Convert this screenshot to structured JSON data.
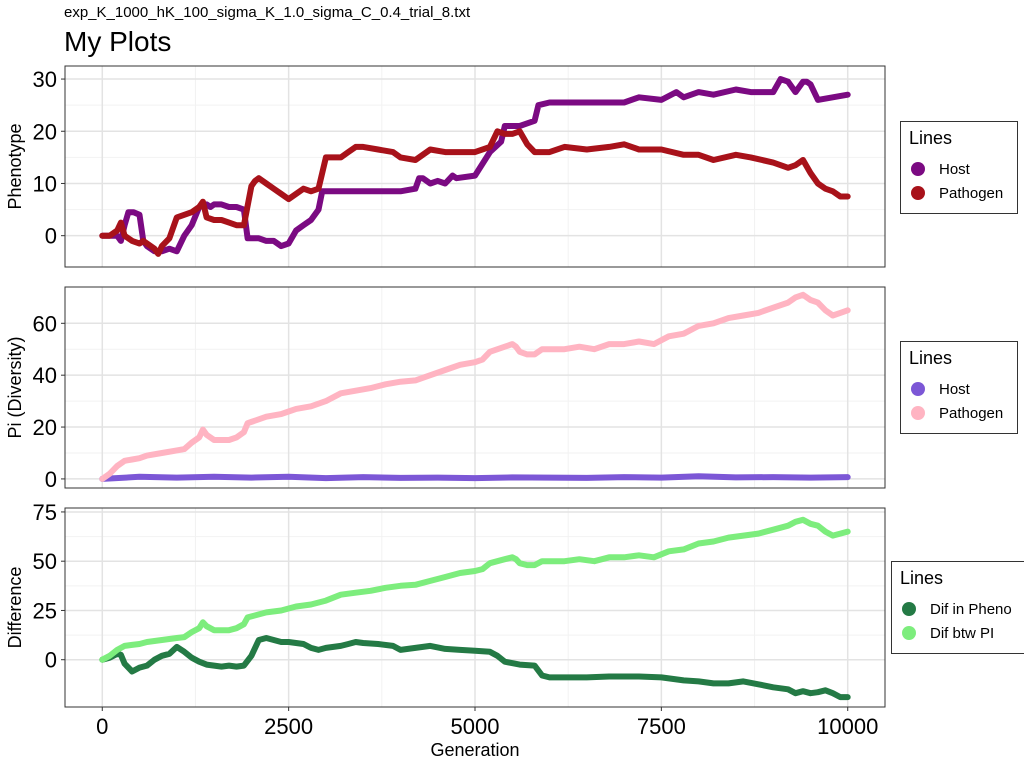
{
  "subtitle": "exp_K_1000_hK_100_sigma_K_1.0_sigma_C_0.4_trial_8.txt",
  "title": "My Plots",
  "legends": [
    {
      "title": "Lines",
      "items": [
        {
          "label": "Host",
          "color": "#7b0a82"
        },
        {
          "label": "Pathogen",
          "color": "#a8121a"
        }
      ]
    },
    {
      "title": "Lines",
      "items": [
        {
          "label": "Host",
          "color": "#7c57d6"
        },
        {
          "label": "Pathogen",
          "color": "#ffb4c2"
        }
      ]
    },
    {
      "title": "Lines",
      "items": [
        {
          "label": "Dif in Pheno",
          "color": "#247a45"
        },
        {
          "label": "Dif btw PI",
          "color": "#7ded7d"
        }
      ]
    }
  ],
  "chart_data": [
    {
      "type": "line",
      "ylabel": "Phenotype",
      "xlim": [
        -500,
        10500
      ],
      "ylim": [
        -6,
        32.5
      ],
      "yticks": [
        0,
        10,
        20,
        30
      ],
      "xticks": [
        0,
        2500,
        5000,
        7500,
        10000
      ],
      "grid": true,
      "legend": "right",
      "series": [
        {
          "name": "Host",
          "color": "#7b0a82",
          "x": [
            0,
            200,
            250,
            300,
            350,
            420,
            500,
            550,
            600,
            700,
            800,
            900,
            1000,
            1100,
            1200,
            1300,
            1400,
            1450,
            1500,
            1600,
            1700,
            1800,
            1900,
            1950,
            2000,
            2100,
            2200,
            2300,
            2400,
            2500,
            2600,
            2700,
            2800,
            2900,
            2950,
            3000,
            3500,
            4000,
            4200,
            4250,
            4300,
            4400,
            4500,
            4600,
            4700,
            4750,
            5000,
            5200,
            5350,
            5400,
            5500,
            5600,
            5800,
            5850,
            6000,
            6500,
            7000,
            7200,
            7500,
            7700,
            7800,
            8000,
            8200,
            8500,
            8700,
            9000,
            9100,
            9200,
            9300,
            9400,
            9450,
            9500,
            9600,
            9800,
            10000
          ],
          "y": [
            0,
            0,
            -1,
            2,
            4.5,
            4.5,
            4,
            -1,
            -2,
            -3,
            -3,
            -2.5,
            -3,
            0,
            2,
            5.5,
            6,
            5.5,
            6,
            6,
            5.5,
            5.5,
            5,
            -0.5,
            -0.5,
            -0.5,
            -1,
            -1,
            -2,
            -1.5,
            1,
            2,
            3,
            5,
            8.5,
            8.5,
            8.5,
            8.5,
            9,
            11,
            11,
            10,
            10.5,
            10,
            11.5,
            11,
            11.5,
            16,
            18,
            21,
            21,
            21,
            22,
            25,
            25.5,
            25.5,
            25.5,
            26.5,
            26,
            27.5,
            26.5,
            27.5,
            27,
            28,
            27.5,
            27.5,
            30,
            29.5,
            27.5,
            29.5,
            29.5,
            29,
            26,
            26.5,
            27
          ]
        },
        {
          "name": "Pathogen",
          "color": "#a8121a",
          "x": [
            0,
            100,
            200,
            250,
            300,
            400,
            500,
            550,
            600,
            700,
            750,
            800,
            900,
            1000,
            1100,
            1200,
            1300,
            1350,
            1400,
            1500,
            1600,
            1700,
            1800,
            1900,
            2000,
            2050,
            2100,
            2200,
            2300,
            2400,
            2500,
            2600,
            2700,
            2800,
            2900,
            3000,
            3100,
            3200,
            3300,
            3400,
            3500,
            3700,
            3900,
            4000,
            4200,
            4400,
            4600,
            4800,
            5000,
            5200,
            5300,
            5400,
            5500,
            5600,
            5700,
            5800,
            6000,
            6200,
            6500,
            6800,
            7000,
            7200,
            7500,
            7800,
            8000,
            8200,
            8500,
            8700,
            9000,
            9200,
            9300,
            9400,
            9500,
            9600,
            9700,
            9800,
            9900,
            10000
          ],
          "y": [
            0,
            0,
            1,
            2.5,
            0,
            -1,
            -1.5,
            -1,
            -1.5,
            -2.5,
            -3.5,
            -2,
            -0.5,
            3.5,
            4,
            4.5,
            5.5,
            6.5,
            3.5,
            3,
            3,
            2.5,
            2,
            2,
            9.5,
            10.5,
            11,
            10,
            9,
            8,
            7,
            8,
            9,
            8.5,
            9,
            15,
            15,
            15,
            16,
            17,
            17,
            16.5,
            16,
            15,
            14.5,
            16.5,
            16,
            16,
            16,
            17,
            20,
            19.5,
            19.5,
            20,
            17.5,
            16,
            16,
            17,
            16.5,
            17,
            17.5,
            16.5,
            16.5,
            15.5,
            15.5,
            14.5,
            15.5,
            15,
            14,
            13,
            13.5,
            14.5,
            12,
            10,
            9,
            8.5,
            7.5,
            7.5
          ]
        }
      ]
    },
    {
      "type": "line",
      "ylabel": "Pi (Diversity)",
      "xlim": [
        -500,
        10500
      ],
      "ylim": [
        -3.5,
        74
      ],
      "yticks": [
        0,
        20,
        40,
        60
      ],
      "xticks": [
        0,
        2500,
        5000,
        7500,
        10000
      ],
      "grid": true,
      "legend": "right",
      "series": [
        {
          "name": "Host",
          "color": "#7c57d6",
          "x": [
            0,
            500,
            1000,
            1500,
            2000,
            2500,
            3000,
            3500,
            4000,
            4500,
            5000,
            5500,
            6000,
            6500,
            7000,
            7500,
            8000,
            8500,
            9000,
            9500,
            10000
          ],
          "y": [
            0,
            0.8,
            0.5,
            0.8,
            0.5,
            0.8,
            0.3,
            0.7,
            0.4,
            0.5,
            0.3,
            0.6,
            0.5,
            0.4,
            0.7,
            0.5,
            1,
            0.6,
            0.7,
            0.5,
            0.7
          ]
        },
        {
          "name": "Pathogen",
          "color": "#ffb4c2",
          "x": [
            0,
            100,
            200,
            300,
            400,
            500,
            600,
            800,
            1000,
            1100,
            1200,
            1300,
            1350,
            1400,
            1500,
            1700,
            1800,
            1900,
            1950,
            2000,
            2200,
            2400,
            2500,
            2600,
            2800,
            3000,
            3200,
            3400,
            3600,
            3800,
            4000,
            4200,
            4400,
            4600,
            4800,
            5000,
            5100,
            5200,
            5400,
            5500,
            5550,
            5600,
            5700,
            5800,
            5900,
            6000,
            6200,
            6400,
            6600,
            6800,
            7000,
            7200,
            7400,
            7600,
            7800,
            8000,
            8200,
            8400,
            8600,
            8800,
            9000,
            9200,
            9300,
            9400,
            9500,
            9600,
            9700,
            9800,
            9900,
            10000
          ],
          "y": [
            0,
            2,
            5,
            7,
            7.5,
            8,
            9,
            10,
            11,
            11.5,
            14,
            16,
            19,
            17,
            15,
            15,
            16,
            18,
            21.5,
            22,
            24,
            25,
            26,
            27,
            28,
            30,
            33,
            34,
            35,
            36.5,
            37.5,
            38,
            40,
            42,
            44,
            45,
            46,
            49,
            51,
            52,
            51,
            49,
            48,
            48,
            50,
            50,
            50,
            51,
            50,
            52,
            52,
            53,
            52,
            55,
            56,
            59,
            60,
            62,
            63,
            64,
            66,
            68,
            70,
            71,
            69,
            68,
            65,
            63,
            64,
            65
          ]
        }
      ]
    },
    {
      "type": "line",
      "ylabel": "Difference",
      "xlabel": "Generation",
      "xlim": [
        -500,
        10500
      ],
      "ylim": [
        -24,
        77
      ],
      "yticks": [
        0,
        25,
        50,
        75
      ],
      "xticks": [
        0,
        2500,
        5000,
        7500,
        10000
      ],
      "grid": true,
      "legend": "right",
      "series": [
        {
          "name": "Dif in Pheno",
          "color": "#247a45",
          "x": [
            0,
            100,
            200,
            250,
            300,
            350,
            400,
            500,
            600,
            700,
            800,
            900,
            1000,
            1100,
            1200,
            1300,
            1400,
            1500,
            1600,
            1700,
            1800,
            1900,
            2000,
            2100,
            2200,
            2400,
            2500,
            2700,
            2800,
            2900,
            3000,
            3200,
            3300,
            3400,
            3500,
            3700,
            3900,
            4000,
            4200,
            4400,
            4600,
            4800,
            5000,
            5200,
            5300,
            5400,
            5600,
            5800,
            5900,
            6000,
            6200,
            6500,
            6800,
            7000,
            7200,
            7500,
            7700,
            7800,
            8000,
            8200,
            8400,
            8600,
            8800,
            9000,
            9200,
            9300,
            9400,
            9500,
            9600,
            9700,
            9800,
            9900,
            10000
          ],
          "y": [
            0,
            1,
            3,
            2.5,
            -2,
            -4,
            -6,
            -4,
            -3,
            0,
            2,
            3,
            6.5,
            4,
            1,
            -1,
            -2.5,
            -3,
            -3.5,
            -3,
            -3.5,
            -3,
            2,
            10,
            11,
            9,
            9,
            8,
            6,
            5,
            6,
            7,
            8,
            9,
            8.5,
            8,
            7,
            5,
            6,
            7,
            5.5,
            5,
            4.5,
            4,
            2,
            -1,
            -2.5,
            -3,
            -8,
            -9,
            -9,
            -9,
            -8.5,
            -8.5,
            -8.5,
            -9,
            -10,
            -10.5,
            -11,
            -12,
            -12,
            -11,
            -12.5,
            -14,
            -15,
            -17,
            -16,
            -17,
            -16.5,
            -15.5,
            -17,
            -19,
            -19
          ]
        },
        {
          "name": "Dif btw PI",
          "color": "#7ded7d",
          "x": [
            0,
            100,
            200,
            300,
            400,
            500,
            600,
            800,
            1000,
            1100,
            1200,
            1300,
            1350,
            1400,
            1500,
            1700,
            1800,
            1900,
            1950,
            2000,
            2200,
            2400,
            2500,
            2600,
            2800,
            3000,
            3200,
            3400,
            3600,
            3800,
            4000,
            4200,
            4400,
            4600,
            4800,
            5000,
            5100,
            5200,
            5400,
            5500,
            5550,
            5600,
            5700,
            5800,
            5900,
            6000,
            6200,
            6400,
            6600,
            6800,
            7000,
            7200,
            7400,
            7600,
            7800,
            8000,
            8200,
            8400,
            8600,
            8800,
            9000,
            9200,
            9300,
            9400,
            9500,
            9600,
            9700,
            9800,
            9900,
            10000
          ],
          "y": [
            0,
            2,
            5,
            7,
            7.5,
            8,
            9,
            10,
            11,
            11.5,
            14,
            16,
            19,
            17,
            15,
            15,
            16,
            18,
            21.5,
            22,
            24,
            25,
            26,
            27,
            28,
            30,
            33,
            34,
            35,
            36.5,
            37.5,
            38,
            40,
            42,
            44,
            45,
            46,
            49,
            51,
            52,
            51,
            49,
            48,
            48,
            50,
            50,
            50,
            51,
            50,
            52,
            52,
            53,
            52,
            55,
            56,
            59,
            60,
            62,
            63,
            64,
            66,
            68,
            70,
            71,
            69,
            68,
            65,
            63,
            64,
            65
          ]
        }
      ]
    }
  ]
}
